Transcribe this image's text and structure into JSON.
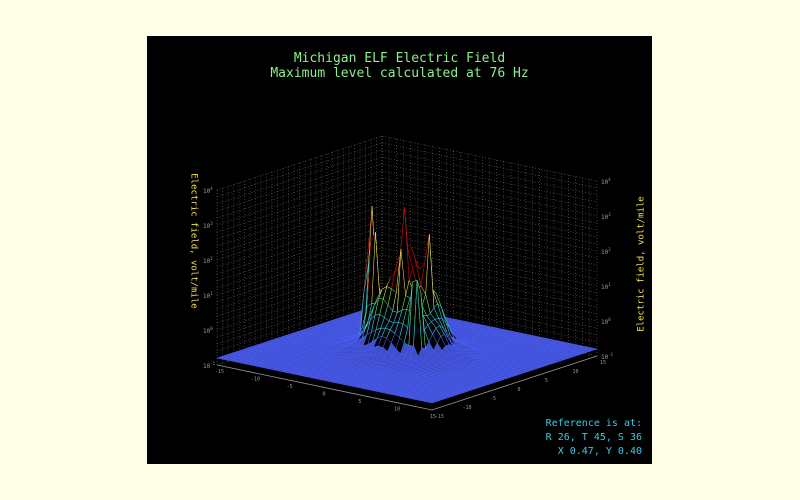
{
  "chart_data": {
    "type": "surface3d",
    "title": "Michigan ELF Electric Field",
    "subtitle": "Maximum level calculated at 76 Hz",
    "zlabel_left": "Electric field, volt/mile",
    "zlabel_right": "Electric field, volt/mile",
    "z_scale": "log",
    "z_ticks": [
      "10^-1",
      "10^0",
      "10^1",
      "10^2",
      "10^3",
      "10^4"
    ],
    "x_ticks_left": [
      "-15",
      "-10",
      "-5",
      "0",
      "5",
      "10",
      "15"
    ],
    "x_ticks_front": [
      "-15",
      "-10",
      "-5",
      "0",
      "5",
      "10",
      "15"
    ],
    "grid": true,
    "peaks_log_level": [
      3.3,
      3.1,
      2.8,
      3.8,
      3.0,
      2.5
    ],
    "colors": {
      "low": "#4a5cf0",
      "mid_low": "#40d8e0",
      "mid": "#60f060",
      "mid_high": "#f0f060",
      "high": "#c81010",
      "peak": "#ff6060",
      "grid": "#9a9a9a",
      "title": "#8cf08c",
      "ylabel": "#f0e050",
      "reference": "#40c8e0"
    }
  },
  "reference": {
    "line1": "Reference is at:",
    "line2": "R 26, T 45, S 36",
    "line3": "X 0.47, Y 0.40"
  }
}
